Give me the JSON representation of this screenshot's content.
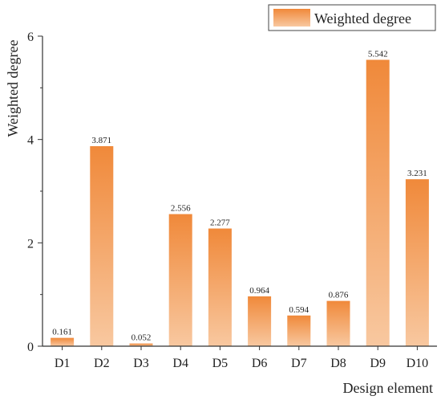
{
  "chart_data": {
    "type": "bar",
    "title": "",
    "xlabel": "Design element",
    "ylabel": "Weighted degree",
    "categories": [
      "D1",
      "D2",
      "D3",
      "D4",
      "D5",
      "D6",
      "D7",
      "D8",
      "D9",
      "D10"
    ],
    "series": [
      {
        "name": "Weighted degree",
        "values": [
          0.161,
          3.871,
          0.052,
          2.556,
          2.277,
          0.964,
          0.594,
          0.876,
          5.542,
          3.231
        ]
      }
    ],
    "data_labels": [
      "0.161",
      "3.871",
      "0.052",
      "2.556",
      "2.277",
      "0.964",
      "0.594",
      "0.876",
      "5.542",
      "3.231"
    ],
    "ylim": [
      0,
      6
    ],
    "yticks": [
      0,
      2,
      4,
      6
    ],
    "grid": false,
    "legend": "top-right",
    "colors": {
      "bar_top": "#F0893A",
      "bar_bottom": "#F8C8A0",
      "axis": "#333333"
    }
  }
}
